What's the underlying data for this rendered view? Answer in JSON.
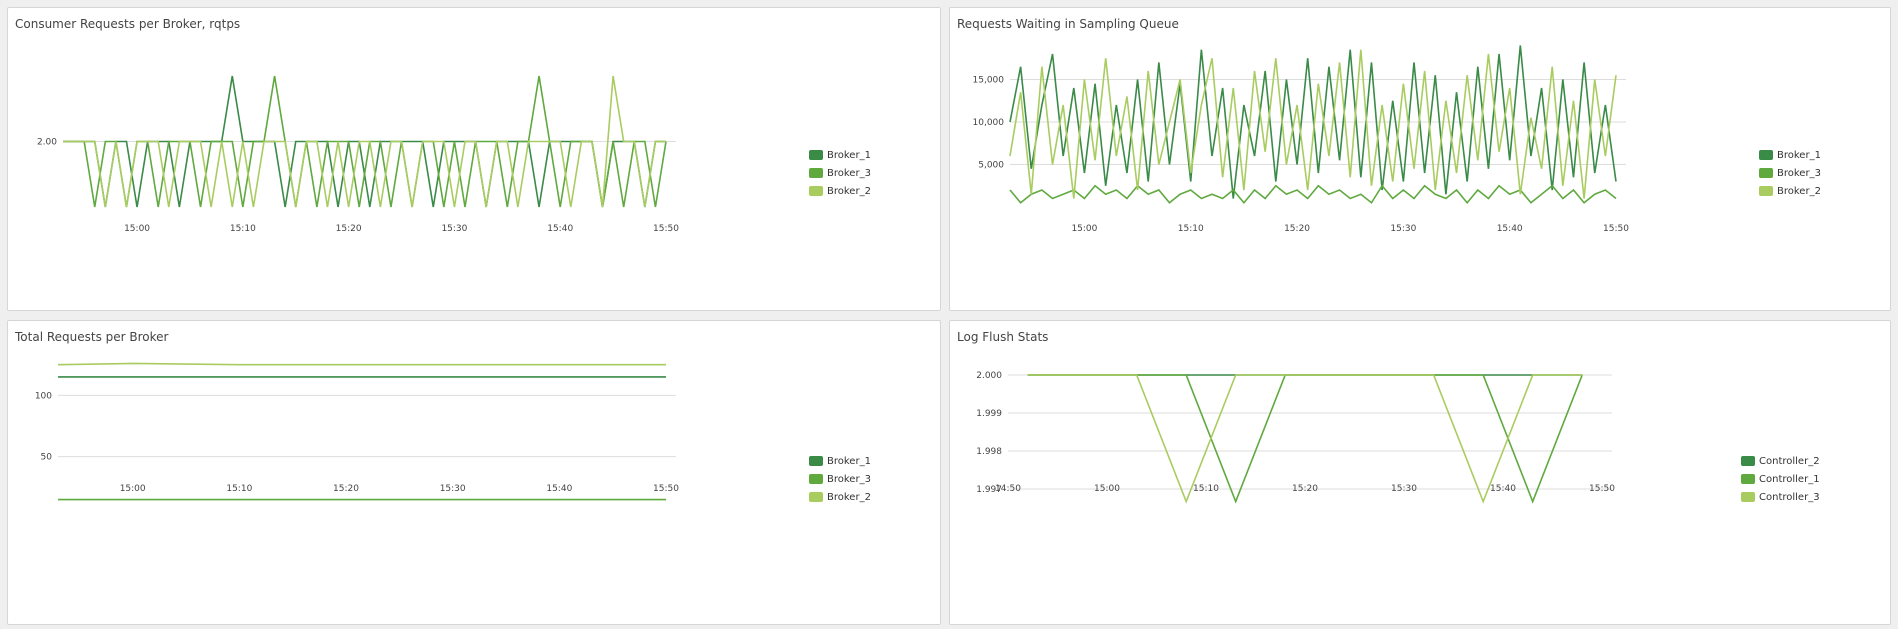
{
  "chart_data": [
    {
      "type": "line",
      "title": "Consumer Requests per Broker, rqtps",
      "x": [
        "14:53",
        "14:55",
        "14:56",
        "14:57",
        "14:58",
        "14:59",
        "15:00",
        "15:01",
        "15:02",
        "15:03",
        "15:04",
        "15:05",
        "15:06",
        "15:07",
        "15:08",
        "15:09",
        "15:10",
        "15:11",
        "15:12",
        "15:13",
        "15:14",
        "15:15",
        "15:16",
        "15:17",
        "15:18",
        "15:19",
        "15:20",
        "15:21",
        "15:22",
        "15:23",
        "15:24",
        "15:25",
        "15:26",
        "15:27",
        "15:28",
        "15:29",
        "15:30",
        "15:31",
        "15:32",
        "15:33",
        "15:34",
        "15:35",
        "15:36",
        "15:37",
        "15:38",
        "15:39",
        "15:40",
        "15:41",
        "15:42",
        "15:43",
        "15:44",
        "15:45",
        "15:46",
        "15:47",
        "15:48",
        "15:49",
        "15:50"
      ],
      "xticks": [
        "15:00",
        "15:10",
        "15:20",
        "15:30",
        "15:40",
        "15:50"
      ],
      "yticks": [
        "2.00"
      ],
      "ylim": [
        1,
        3
      ],
      "series": [
        {
          "name": "Broker_1",
          "color": "#3a8a48",
          "values": [
            2,
            2,
            2,
            1,
            2,
            2,
            1,
            2,
            2,
            2,
            1,
            2,
            2,
            2,
            2,
            3,
            2,
            2,
            2,
            2,
            1,
            2,
            2,
            2,
            2,
            1,
            2,
            2,
            1,
            2,
            2,
            2,
            2,
            2,
            1,
            2,
            2,
            2,
            2,
            1,
            2,
            2,
            2,
            2,
            1,
            2,
            2,
            2,
            2,
            2,
            1,
            2,
            2,
            2,
            1,
            2,
            2
          ]
        },
        {
          "name": "Broker_3",
          "color": "#5fa93f",
          "values": [
            2,
            2,
            1,
            2,
            2,
            1,
            2,
            2,
            1,
            2,
            2,
            2,
            1,
            2,
            2,
            2,
            1,
            2,
            2,
            3,
            2,
            1,
            2,
            1,
            2,
            2,
            2,
            1,
            2,
            2,
            1,
            2,
            1,
            2,
            2,
            1,
            2,
            1,
            2,
            2,
            2,
            1,
            2,
            2,
            3,
            2,
            1,
            2,
            2,
            2,
            1,
            2,
            1,
            2,
            2,
            1,
            2
          ]
        },
        {
          "name": "Broker_2",
          "color": "#a9cc61",
          "values": [
            2,
            2,
            2,
            1,
            2,
            1,
            2,
            2,
            2,
            1,
            2,
            2,
            2,
            1,
            2,
            1,
            2,
            1,
            2,
            2,
            2,
            1,
            2,
            2,
            1,
            2,
            1,
            2,
            2,
            1,
            2,
            2,
            1,
            2,
            2,
            2,
            1,
            2,
            2,
            1,
            2,
            2,
            1,
            2,
            2,
            2,
            2,
            1,
            2,
            2,
            1,
            3,
            2,
            2,
            1,
            2,
            2
          ]
        }
      ]
    },
    {
      "type": "line",
      "title": "Requests Waiting in Sampling Queue",
      "x": [
        "14:53",
        "14:54",
        "14:55",
        "14:56",
        "14:57",
        "14:58",
        "14:59",
        "15:00",
        "15:01",
        "15:02",
        "15:03",
        "15:04",
        "15:05",
        "15:06",
        "15:07",
        "15:08",
        "15:09",
        "15:10",
        "15:11",
        "15:12",
        "15:13",
        "15:14",
        "15:15",
        "15:16",
        "15:17",
        "15:18",
        "15:19",
        "15:20",
        "15:21",
        "15:22",
        "15:23",
        "15:24",
        "15:25",
        "15:26",
        "15:27",
        "15:28",
        "15:29",
        "15:30",
        "15:31",
        "15:32",
        "15:33",
        "15:34",
        "15:35",
        "15:36",
        "15:37",
        "15:38",
        "15:39",
        "15:40",
        "15:41",
        "15:42",
        "15:43",
        "15:44",
        "15:45",
        "15:46",
        "15:47",
        "15:48",
        "15:49",
        "15:50"
      ],
      "xticks": [
        "15:00",
        "15:10",
        "15:20",
        "15:30",
        "15:40",
        "15:50"
      ],
      "yticks": [
        "5,000",
        "10,000",
        "15,000"
      ],
      "ylim": [
        0,
        20000
      ],
      "series": [
        {
          "name": "Broker_1",
          "color": "#3a8a48",
          "values": [
            10000,
            16500,
            4500,
            12000,
            18000,
            6000,
            14000,
            4000,
            14500,
            2500,
            12000,
            4000,
            15000,
            3000,
            17000,
            5000,
            14500,
            3000,
            18500,
            6000,
            14000,
            1000,
            12000,
            6000,
            16000,
            3000,
            15000,
            5000,
            17500,
            4000,
            16500,
            5500,
            18500,
            3500,
            17000,
            2000,
            12500,
            3000,
            17000,
            4000,
            15500,
            1500,
            13500,
            3000,
            16500,
            4500,
            18000,
            5500,
            19000,
            6000,
            14000,
            2000,
            15000,
            3500,
            17000,
            4000,
            12000,
            3000
          ]
        },
        {
          "name": "Broker_3",
          "color": "#5fa93f",
          "values": [
            2000,
            500,
            1500,
            2000,
            1000,
            1500,
            2000,
            1000,
            2500,
            1500,
            2000,
            1000,
            2500,
            1500,
            2000,
            500,
            1500,
            2000,
            1000,
            1500,
            1000,
            2000,
            500,
            2000,
            1000,
            2500,
            1500,
            2000,
            1000,
            2500,
            1500,
            2000,
            1000,
            1500,
            500,
            2500,
            1000,
            2000,
            1000,
            2500,
            1500,
            1000,
            2000,
            500,
            2000,
            1000,
            2500,
            1500,
            2000,
            500,
            1500,
            2500,
            1000,
            2000,
            500,
            1500,
            2000,
            1000
          ]
        },
        {
          "name": "Broker_2",
          "color": "#a9cc61",
          "values": [
            6000,
            13500,
            1500,
            16500,
            5000,
            12000,
            1000,
            15000,
            5500,
            17500,
            6000,
            13000,
            2000,
            16000,
            5000,
            10000,
            15000,
            4000,
            12000,
            17500,
            3500,
            14000,
            2000,
            16000,
            6500,
            17500,
            5000,
            12000,
            2000,
            14500,
            6000,
            17000,
            3500,
            18500,
            2500,
            12000,
            3000,
            14500,
            4500,
            16000,
            2000,
            12500,
            4000,
            15500,
            5500,
            18000,
            6500,
            14000,
            1500,
            10500,
            4500,
            16500,
            2500,
            12500,
            1000,
            15000,
            6000,
            15500
          ]
        }
      ]
    },
    {
      "type": "line",
      "title": "Total Requests per Broker",
      "x": [
        "14:53",
        "15:00",
        "15:10",
        "15:20",
        "15:30",
        "15:40",
        "15:50"
      ],
      "xticks": [
        "15:00",
        "15:10",
        "15:20",
        "15:30",
        "15:40",
        "15:50"
      ],
      "yticks": [
        "50",
        "100"
      ],
      "ylim": [
        0,
        150
      ],
      "series": [
        {
          "name": "Broker_1",
          "color": "#3a8a48",
          "values": [
            115,
            115,
            115,
            115,
            115,
            115,
            115
          ]
        },
        {
          "name": "Broker_3",
          "color": "#5fa93f",
          "values": [
            15,
            15,
            15,
            15,
            15,
            15,
            15
          ]
        },
        {
          "name": "Broker_2",
          "color": "#a9cc61",
          "values": [
            125,
            126,
            125,
            125,
            125,
            125,
            125
          ]
        }
      ]
    },
    {
      "type": "line",
      "title": "Log Flush Stats",
      "x": [
        "14:52",
        "15:03",
        "15:08",
        "15:13",
        "15:18",
        "15:33",
        "15:38",
        "15:43",
        "15:48"
      ],
      "xticks": [
        "14:50",
        "15:00",
        "15:10",
        "15:20",
        "15:30",
        "15:40",
        "15:50"
      ],
      "yticks": [
        "1.997",
        "1.998",
        "1.999",
        "2.000"
      ],
      "ylim": [
        1.9965,
        2.0005
      ],
      "series": [
        {
          "name": "Controller_2",
          "color": "#3a8a48",
          "values": [
            2.0,
            2.0,
            2.0,
            2.0,
            2.0,
            2.0,
            2.0,
            2.0,
            2.0
          ]
        },
        {
          "name": "Controller_1",
          "color": "#5fa93f",
          "values": [
            2.0,
            2.0,
            2.0,
            1.99667,
            2.0,
            2.0,
            2.0,
            1.99667,
            2.0
          ]
        },
        {
          "name": "Controller_3",
          "color": "#a9cc61",
          "values": [
            2.0,
            2.0,
            1.99667,
            2.0,
            2.0,
            2.0,
            1.99667,
            2.0,
            2.0
          ]
        }
      ]
    }
  ]
}
